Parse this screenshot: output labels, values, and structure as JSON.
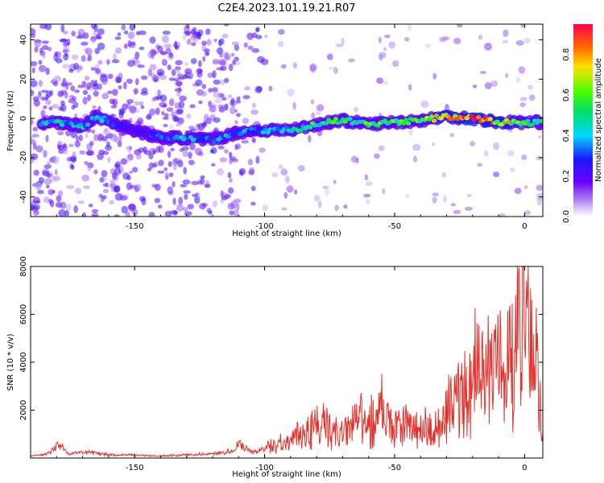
{
  "title": "C2E4.2023.101.19.21.R07",
  "chart_data": [
    {
      "type": "heatmap",
      "xlabel": "Height of straight line (km)",
      "ylabel": "Frequency (Hz)",
      "xlim": [
        -190,
        7
      ],
      "ylim": [
        -50,
        48
      ],
      "xticks": [
        -150,
        -100,
        -50,
        0
      ],
      "yticks": [
        -40,
        -20,
        0,
        20,
        40
      ],
      "colorbar": {
        "label": "Normalized spectral amplitude",
        "range": [
          0,
          0.95
        ],
        "ticks": [
          0.0,
          0.2,
          0.4,
          0.6,
          0.8
        ],
        "colormap": "rainbow"
      },
      "ridge": {
        "x": [
          -182,
          -175,
          -170,
          -165,
          -150,
          -140,
          -130,
          -120,
          -110,
          -100,
          -90,
          -80,
          -70,
          -60,
          -50,
          -40,
          -30,
          -20,
          -10,
          0,
          6
        ],
        "freq": [
          -2,
          -3,
          -4,
          1,
          -6,
          -10,
          -10,
          -11,
          -7,
          -6,
          -6,
          -3,
          -1,
          -3,
          -2,
          -1,
          1,
          0,
          -2,
          -2,
          -2
        ],
        "amplitude": [
          0.45,
          0.4,
          0.4,
          0.4,
          0.2,
          0.35,
          0.35,
          0.4,
          0.3,
          0.4,
          0.45,
          0.5,
          0.55,
          0.55,
          0.55,
          0.55,
          0.75,
          0.85,
          0.8,
          0.5,
          0.5
        ]
      },
      "grid": false
    },
    {
      "type": "line",
      "xlabel": "Height of straight line (km)",
      "ylabel": "SNR (10 * v/v)",
      "xlim": [
        -190,
        7
      ],
      "ylim": [
        0,
        8000
      ],
      "xticks": [
        -150,
        -100,
        -50,
        0
      ],
      "yticks": [
        2000,
        4000,
        6000,
        8000
      ],
      "series": [
        {
          "color": "#e8302a",
          "x": [
            -190,
            -185,
            -182,
            -180,
            -175,
            -170,
            -165,
            -160,
            -150,
            -140,
            -130,
            -120,
            -112,
            -110,
            -105,
            -100,
            -95,
            -90,
            -85,
            -80,
            -75,
            -70,
            -65,
            -60,
            -55,
            -50,
            -45,
            -40,
            -35,
            -32,
            -30,
            -25,
            -22,
            -20,
            -18,
            -15,
            -12,
            -10,
            -8,
            -5,
            -3,
            -1,
            0,
            1,
            3,
            5,
            7
          ],
          "values": [
            100,
            150,
            300,
            700,
            200,
            300,
            250,
            150,
            150,
            100,
            150,
            200,
            350,
            700,
            300,
            400,
            700,
            800,
            1200,
            1600,
            1400,
            1000,
            1900,
            1500,
            2300,
            1300,
            1600,
            1300,
            1500,
            1200,
            2200,
            2800,
            3500,
            3300,
            4800,
            3800,
            4200,
            4600,
            4400,
            4800,
            5200,
            8000,
            6000,
            5600,
            5000,
            4200,
            1900
          ]
        }
      ],
      "grid": false
    }
  ]
}
